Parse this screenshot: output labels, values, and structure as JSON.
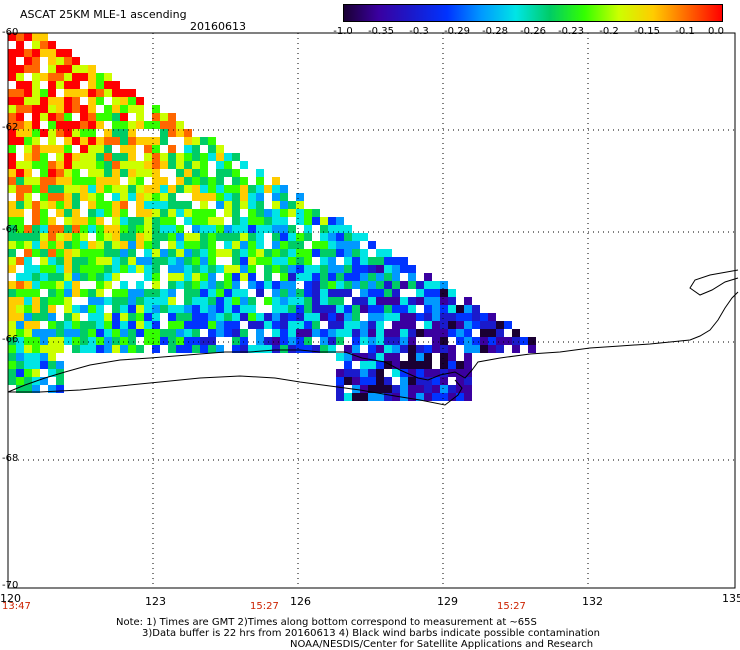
{
  "header": {
    "title": "ASCAT 25KM MLE-1 ascending",
    "date": "20160613"
  },
  "colorbar": {
    "labels": [
      "-1.0",
      "-0.35",
      "-0.3",
      "-0.29",
      "-0.28",
      "-0.26",
      "-0.23",
      "-0.2",
      "-0.15",
      "-0.1",
      "0.0"
    ],
    "colors": [
      "#1a0033",
      "#3a00a0",
      "#1a1acc",
      "#0033ff",
      "#0099ff",
      "#00e5e5",
      "#00cc66",
      "#33ff00",
      "#ccff00",
      "#ffcc00",
      "#ff6600",
      "#ff0000"
    ]
  },
  "axes": {
    "lat_labels": [
      "-60",
      "-62",
      "-64",
      "-66",
      "-68",
      "-70"
    ],
    "lon_labels": [
      "120",
      "123",
      "126",
      "129",
      "132",
      "135"
    ],
    "time_labels": [
      "13:47",
      "15:27",
      "15:27"
    ]
  },
  "notes": {
    "line1": "Note: 1) Times are GMT 2)Times along bottom correspond to measurement at ~65S",
    "line2": "3)Data buffer is 22 hrs from 20160613 4) Black wind barbs indicate possible contamination",
    "line3": "NOAA/NESDIS/Center for Satellite Applications and Research"
  }
}
